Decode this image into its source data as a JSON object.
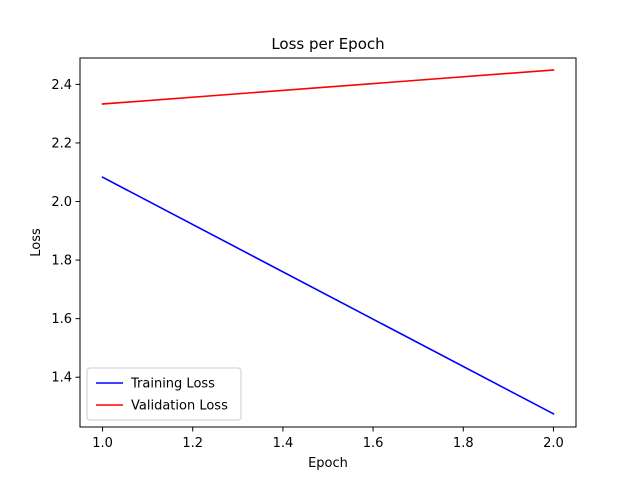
{
  "chart_data": {
    "type": "line",
    "title": "Loss per Epoch",
    "xlabel": "Epoch",
    "ylabel": "Loss",
    "xlim": [
      0.95,
      2.05
    ],
    "ylim": [
      1.23,
      2.49
    ],
    "xticks": [
      1.0,
      1.2,
      1.4,
      1.6,
      1.8,
      2.0
    ],
    "xtick_labels": [
      "1.0",
      "1.2",
      "1.4",
      "1.6",
      "1.8",
      "2.0"
    ],
    "yticks": [
      1.4,
      1.6,
      1.8,
      2.0,
      2.2,
      2.4
    ],
    "ytick_labels": [
      "1.4",
      "1.6",
      "1.8",
      "2.0",
      "2.2",
      "2.4"
    ],
    "grid": false,
    "legend_position": "lower-left",
    "series": [
      {
        "name": "Training Loss",
        "color": "#0000ff",
        "x": [
          1.0,
          2.0
        ],
        "y": [
          2.083,
          1.275
        ]
      },
      {
        "name": "Validation Loss",
        "color": "#ff0000",
        "x": [
          1.0,
          2.0
        ],
        "y": [
          2.333,
          2.449
        ]
      }
    ]
  }
}
